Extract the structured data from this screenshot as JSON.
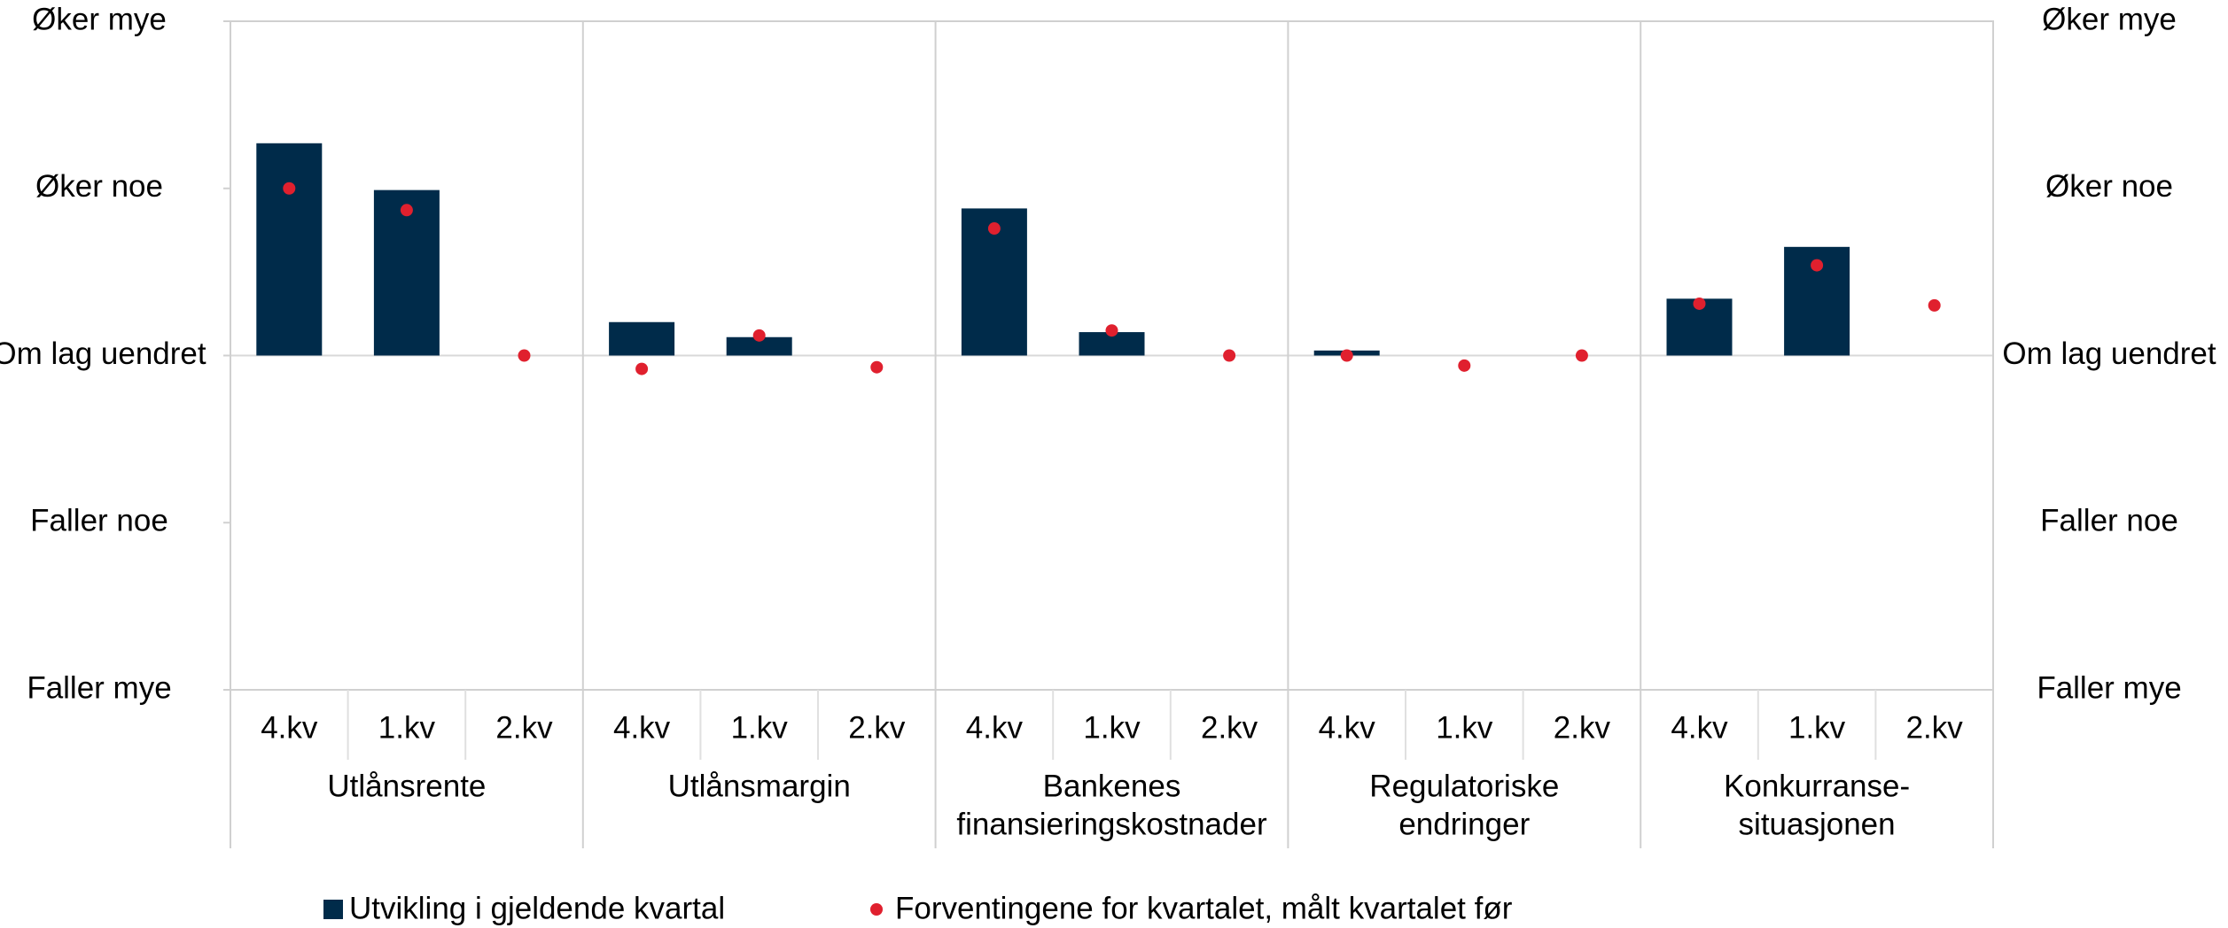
{
  "chart_data": {
    "type": "bar_dot",
    "categories": [
      "4.kv",
      "1.kv",
      "2.kv",
      "4.kv",
      "1.kv",
      "2.kv",
      "4.kv",
      "1.kv",
      "2.kv",
      "4.kv",
      "1.kv",
      "2.kv",
      "4.kv",
      "1.kv",
      "2.kv"
    ],
    "groups": [
      [
        "Utlånsrente"
      ],
      [
        "Utlånsmargin"
      ],
      [
        "Bankenes",
        "finansieringskostnader"
      ],
      [
        "Regulatoriske",
        "endringer"
      ],
      [
        "Konkurranse-",
        "situasjonen"
      ]
    ],
    "series": [
      {
        "name": "Utvikling i gjeldende kvartal",
        "color": "#002b4a",
        "kind": "bar",
        "values": [
          1.27,
          0.99,
          null,
          0.2,
          0.11,
          null,
          0.88,
          0.14,
          null,
          0.03,
          null,
          null,
          0.34,
          0.65,
          null
        ]
      },
      {
        "name": "Forventingene for kvartalet, målt kvartalet før",
        "color": "#e0202e",
        "kind": "dot",
        "values": [
          1.0,
          0.87,
          0,
          -0.08,
          0.12,
          -0.07,
          0.76,
          0.15,
          0,
          0,
          -0.06,
          0,
          0.31,
          0.54,
          0.3
        ]
      }
    ],
    "ylim": [
      -2,
      2
    ],
    "yticks": [
      {
        "value": -2,
        "label": "Faller mye"
      },
      {
        "value": -1,
        "label": "Faller noe"
      },
      {
        "value": 0,
        "label": "Om lag uendret"
      },
      {
        "value": 1,
        "label": "Øker noe"
      },
      {
        "value": 2,
        "label": "Øker mye"
      }
    ],
    "secondary_labels": true,
    "grid": false
  }
}
